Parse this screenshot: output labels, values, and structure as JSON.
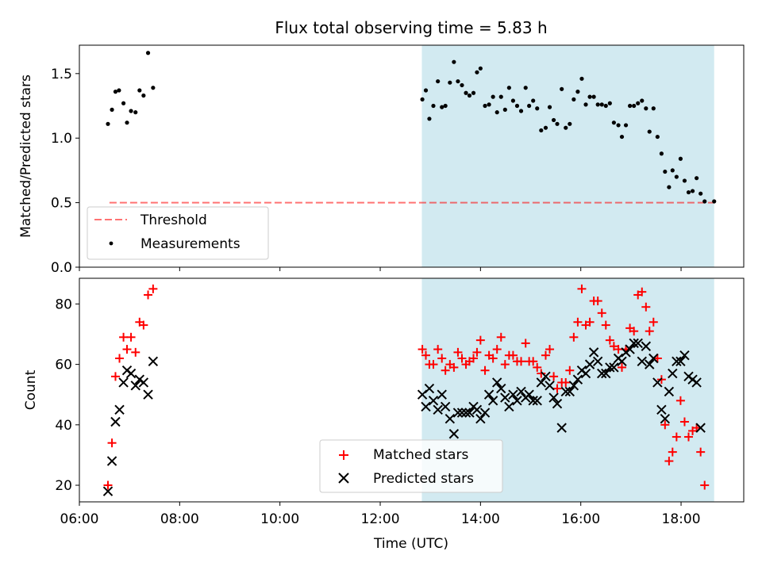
{
  "title": "Flux total observing time = 5.83 h",
  "colors": {
    "highlight": "#add8e6",
    "threshold": "#ff0000",
    "matched": "#ff0000",
    "predicted": "#000000",
    "measurements": "#000000"
  },
  "chart_data": [
    {
      "type": "scatter",
      "ylabel": "Matched/Predicted stars",
      "ylim": [
        0,
        1.72
      ],
      "yticks": [
        0,
        0.5,
        1.0,
        1.5
      ],
      "ytick_labels": [
        "0.0",
        "0.5",
        "1.0",
        "1.5"
      ],
      "xlim_hours": [
        6.0,
        19.25
      ],
      "highlight_range_hours": [
        12.83,
        18.66
      ],
      "threshold": {
        "name": "Threshold",
        "value": 0.5,
        "x_range_hours": [
          6.6,
          18.66
        ]
      },
      "legend": {
        "position": "lower-left",
        "entries": [
          "Threshold",
          "Measurements"
        ]
      },
      "series": [
        {
          "name": "Measurements",
          "points": [
            [
              6.57,
              1.11
            ],
            [
              6.65,
              1.22
            ],
            [
              6.72,
              1.36
            ],
            [
              6.79,
              1.37
            ],
            [
              6.88,
              1.27
            ],
            [
              6.95,
              1.12
            ],
            [
              7.03,
              1.21
            ],
            [
              7.12,
              1.2
            ],
            [
              7.2,
              1.37
            ],
            [
              7.28,
              1.33
            ],
            [
              7.37,
              1.66
            ],
            [
              7.47,
              1.39
            ],
            [
              12.84,
              1.3
            ],
            [
              12.91,
              1.37
            ],
            [
              12.98,
              1.15
            ],
            [
              13.06,
              1.25
            ],
            [
              13.15,
              1.44
            ],
            [
              13.23,
              1.24
            ],
            [
              13.3,
              1.25
            ],
            [
              13.39,
              1.43
            ],
            [
              13.47,
              1.59
            ],
            [
              13.55,
              1.44
            ],
            [
              13.63,
              1.41
            ],
            [
              13.71,
              1.35
            ],
            [
              13.78,
              1.33
            ],
            [
              13.86,
              1.35
            ],
            [
              13.93,
              1.51
            ],
            [
              14.0,
              1.54
            ],
            [
              14.09,
              1.25
            ],
            [
              14.17,
              1.26
            ],
            [
              14.25,
              1.32
            ],
            [
              14.33,
              1.2
            ],
            [
              14.41,
              1.32
            ],
            [
              14.49,
              1.22
            ],
            [
              14.57,
              1.39
            ],
            [
              14.65,
              1.29
            ],
            [
              14.73,
              1.25
            ],
            [
              14.81,
              1.21
            ],
            [
              14.9,
              1.39
            ],
            [
              14.97,
              1.25
            ],
            [
              15.05,
              1.29
            ],
            [
              15.13,
              1.23
            ],
            [
              15.21,
              1.06
            ],
            [
              15.3,
              1.08
            ],
            [
              15.38,
              1.24
            ],
            [
              15.46,
              1.14
            ],
            [
              15.53,
              1.11
            ],
            [
              15.62,
              1.38
            ],
            [
              15.7,
              1.08
            ],
            [
              15.78,
              1.11
            ],
            [
              15.86,
              1.3
            ],
            [
              15.94,
              1.36
            ],
            [
              16.02,
              1.46
            ],
            [
              16.1,
              1.26
            ],
            [
              16.18,
              1.32
            ],
            [
              16.26,
              1.32
            ],
            [
              16.34,
              1.26
            ],
            [
              16.42,
              1.26
            ],
            [
              16.5,
              1.25
            ],
            [
              16.58,
              1.27
            ],
            [
              16.66,
              1.12
            ],
            [
              16.75,
              1.1
            ],
            [
              16.82,
              1.01
            ],
            [
              16.9,
              1.1
            ],
            [
              16.98,
              1.25
            ],
            [
              17.06,
              1.25
            ],
            [
              17.14,
              1.27
            ],
            [
              17.22,
              1.29
            ],
            [
              17.3,
              1.23
            ],
            [
              17.37,
              1.05
            ],
            [
              17.45,
              1.23
            ],
            [
              17.53,
              1.01
            ],
            [
              17.61,
              0.88
            ],
            [
              17.68,
              0.74
            ],
            [
              17.76,
              0.62
            ],
            [
              17.83,
              0.75
            ],
            [
              17.91,
              0.7
            ],
            [
              17.99,
              0.84
            ],
            [
              18.07,
              0.67
            ],
            [
              18.15,
              0.58
            ],
            [
              18.23,
              0.59
            ],
            [
              18.31,
              0.69
            ],
            [
              18.39,
              0.57
            ],
            [
              18.47,
              0.51
            ],
            [
              18.66,
              0.51
            ]
          ]
        }
      ]
    },
    {
      "type": "scatter",
      "xlabel": "Time (UTC)",
      "ylabel": "Count",
      "ylim": [
        14.5,
        88.5
      ],
      "yticks": [
        20,
        40,
        60,
        80
      ],
      "ytick_labels": [
        "20",
        "40",
        "60",
        "80"
      ],
      "xlim_hours": [
        6.0,
        19.25
      ],
      "xticks_hours": [
        6,
        8,
        10,
        12,
        14,
        16,
        18
      ],
      "xtick_labels": [
        "06:00",
        "08:00",
        "10:00",
        "12:00",
        "14:00",
        "16:00",
        "18:00"
      ],
      "highlight_range_hours": [
        12.83,
        18.66
      ],
      "legend": {
        "position": "lower-center",
        "entries": [
          "Matched stars",
          "Predicted stars"
        ]
      },
      "series": [
        {
          "name": "Matched stars",
          "marker": "+",
          "points": [
            [
              6.57,
              20
            ],
            [
              6.65,
              34
            ],
            [
              6.72,
              56
            ],
            [
              6.8,
              62
            ],
            [
              6.88,
              69
            ],
            [
              6.95,
              65
            ],
            [
              7.03,
              69
            ],
            [
              7.12,
              64
            ],
            [
              7.2,
              74
            ],
            [
              7.28,
              73
            ],
            [
              7.37,
              83
            ],
            [
              7.47,
              85
            ],
            [
              12.84,
              65
            ],
            [
              12.91,
              63
            ],
            [
              12.98,
              60
            ],
            [
              13.06,
              60
            ],
            [
              13.15,
              65
            ],
            [
              13.23,
              62
            ],
            [
              13.3,
              58
            ],
            [
              13.39,
              60
            ],
            [
              13.47,
              59
            ],
            [
              13.55,
              64
            ],
            [
              13.63,
              62
            ],
            [
              13.71,
              60
            ],
            [
              13.78,
              61
            ],
            [
              13.86,
              62
            ],
            [
              13.93,
              64
            ],
            [
              14.0,
              68
            ],
            [
              14.09,
              58
            ],
            [
              14.17,
              63
            ],
            [
              14.25,
              62
            ],
            [
              14.33,
              65
            ],
            [
              14.41,
              69
            ],
            [
              14.49,
              60
            ],
            [
              14.57,
              63
            ],
            [
              14.65,
              63
            ],
            [
              14.73,
              61
            ],
            [
              14.81,
              61
            ],
            [
              14.9,
              67
            ],
            [
              14.97,
              61
            ],
            [
              15.05,
              61
            ],
            [
              15.13,
              59
            ],
            [
              15.21,
              57
            ],
            [
              15.3,
              63
            ],
            [
              15.38,
              65
            ],
            [
              15.46,
              56
            ],
            [
              15.53,
              52
            ],
            [
              15.62,
              54
            ],
            [
              15.7,
              54
            ],
            [
              15.78,
              58
            ],
            [
              15.86,
              69
            ],
            [
              15.94,
              74
            ],
            [
              16.02,
              85
            ],
            [
              16.1,
              73
            ],
            [
              16.18,
              74
            ],
            [
              16.26,
              81
            ],
            [
              16.34,
              81
            ],
            [
              16.42,
              77
            ],
            [
              16.5,
              73
            ],
            [
              16.58,
              68
            ],
            [
              16.66,
              66
            ],
            [
              16.75,
              65
            ],
            [
              16.82,
              59
            ],
            [
              16.9,
              65
            ],
            [
              16.98,
              72
            ],
            [
              17.06,
              71
            ],
            [
              17.14,
              83
            ],
            [
              17.22,
              84
            ],
            [
              17.3,
              79
            ],
            [
              17.37,
              71
            ],
            [
              17.45,
              74
            ],
            [
              17.53,
              62
            ],
            [
              17.61,
              55
            ],
            [
              17.68,
              40
            ],
            [
              17.76,
              28
            ],
            [
              17.83,
              31
            ],
            [
              17.91,
              36
            ],
            [
              17.99,
              48
            ],
            [
              18.07,
              41
            ],
            [
              18.15,
              36
            ],
            [
              18.23,
              38
            ],
            [
              18.31,
              39
            ],
            [
              18.39,
              31
            ],
            [
              18.47,
              20
            ]
          ]
        },
        {
          "name": "Predicted stars",
          "marker": "x",
          "points": [
            [
              6.57,
              18
            ],
            [
              6.65,
              28
            ],
            [
              6.72,
              41
            ],
            [
              6.8,
              45
            ],
            [
              6.88,
              54
            ],
            [
              6.95,
              58
            ],
            [
              7.03,
              57
            ],
            [
              7.12,
              53
            ],
            [
              7.2,
              55
            ],
            [
              7.28,
              54
            ],
            [
              7.37,
              50
            ],
            [
              7.47,
              61
            ],
            [
              12.84,
              50
            ],
            [
              12.91,
              46
            ],
            [
              12.98,
              52
            ],
            [
              13.06,
              48
            ],
            [
              13.15,
              45
            ],
            [
              13.23,
              50
            ],
            [
              13.3,
              46
            ],
            [
              13.39,
              42
            ],
            [
              13.47,
              37
            ],
            [
              13.55,
              44
            ],
            [
              13.63,
              44
            ],
            [
              13.71,
              44
            ],
            [
              13.78,
              44
            ],
            [
              13.86,
              46
            ],
            [
              13.93,
              45
            ],
            [
              14.0,
              42
            ],
            [
              14.09,
              44
            ],
            [
              14.17,
              50
            ],
            [
              14.25,
              48
            ],
            [
              14.33,
              54
            ],
            [
              14.41,
              52
            ],
            [
              14.49,
              49
            ],
            [
              14.57,
              46
            ],
            [
              14.65,
              50
            ],
            [
              14.73,
              48
            ],
            [
              14.81,
              51
            ],
            [
              14.9,
              49
            ],
            [
              14.97,
              50
            ],
            [
              15.05,
              48
            ],
            [
              15.13,
              48
            ],
            [
              15.21,
              54
            ],
            [
              15.3,
              56
            ],
            [
              15.38,
              53
            ],
            [
              15.46,
              49
            ],
            [
              15.53,
              47
            ],
            [
              15.62,
              39
            ],
            [
              15.7,
              51
            ],
            [
              15.78,
              51
            ],
            [
              15.86,
              53
            ],
            [
              15.94,
              55
            ],
            [
              16.02,
              58
            ],
            [
              16.1,
              57
            ],
            [
              16.18,
              60
            ],
            [
              16.26,
              64
            ],
            [
              16.34,
              61
            ],
            [
              16.42,
              57
            ],
            [
              16.5,
              57
            ],
            [
              16.58,
              59
            ],
            [
              16.66,
              59
            ],
            [
              16.75,
              62
            ],
            [
              16.82,
              61
            ],
            [
              16.9,
              64
            ],
            [
              16.98,
              65
            ],
            [
              17.06,
              67
            ],
            [
              17.14,
              67
            ],
            [
              17.22,
              61
            ],
            [
              17.3,
              66
            ],
            [
              17.37,
              60
            ],
            [
              17.45,
              62
            ],
            [
              17.53,
              54
            ],
            [
              17.61,
              45
            ],
            [
              17.68,
              42
            ],
            [
              17.76,
              51
            ],
            [
              17.83,
              57
            ],
            [
              17.91,
              61
            ],
            [
              17.99,
              61
            ],
            [
              18.07,
              63
            ],
            [
              18.15,
              56
            ],
            [
              18.23,
              55
            ],
            [
              18.31,
              54
            ],
            [
              18.39,
              39
            ]
          ]
        }
      ]
    }
  ]
}
